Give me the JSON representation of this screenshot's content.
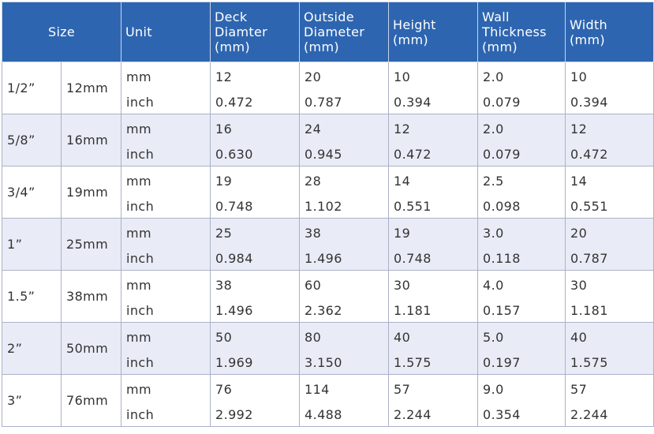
{
  "header": {
    "size": "Size",
    "unit": "Unit",
    "deck": [
      "Deck",
      "Diamter",
      "(mm)"
    ],
    "outside": [
      "Outside",
      "Diameter",
      "(mm)"
    ],
    "height": [
      "Height",
      "(mm)"
    ],
    "wall": [
      "Wall",
      "Thickness",
      "(mm)"
    ],
    "width": [
      "Width",
      "(mm)"
    ]
  },
  "rows": [
    {
      "size": "1/2”",
      "mm": "12mm",
      "units": [
        "mm",
        "inch"
      ],
      "deck": [
        "12",
        "0.472"
      ],
      "outside": [
        "20",
        "0.787"
      ],
      "height": [
        "10",
        "0.394"
      ],
      "wall": [
        "2.0",
        "0.079"
      ],
      "width": [
        "10",
        "0.394"
      ]
    },
    {
      "size": "5/8”",
      "mm": "16mm",
      "units": [
        "mm",
        "inch"
      ],
      "deck": [
        "16",
        "0.630"
      ],
      "outside": [
        "24",
        "0.945"
      ],
      "height": [
        "12",
        "0.472"
      ],
      "wall": [
        "2.0",
        "0.079"
      ],
      "width": [
        "12",
        "0.472"
      ]
    },
    {
      "size": "3/4”",
      "mm": "19mm",
      "units": [
        "mm",
        "inch"
      ],
      "deck": [
        "19",
        "0.748"
      ],
      "outside": [
        "28",
        "1.102"
      ],
      "height": [
        "14",
        "0.551"
      ],
      "wall": [
        "2.5",
        "0.098"
      ],
      "width": [
        "14",
        "0.551"
      ]
    },
    {
      "size": "1”",
      "mm": "25mm",
      "units": [
        "mm",
        "inch"
      ],
      "deck": [
        "25",
        "0.984"
      ],
      "outside": [
        "38",
        "1.496"
      ],
      "height": [
        "19",
        "0.748"
      ],
      "wall": [
        "3.0",
        "0.118"
      ],
      "width": [
        "20",
        "0.787"
      ]
    },
    {
      "size": "1.5”",
      "mm": "38mm",
      "units": [
        "mm",
        "inch"
      ],
      "deck": [
        "38",
        "1.496"
      ],
      "outside": [
        "60",
        "2.362"
      ],
      "height": [
        "30",
        "1.181"
      ],
      "wall": [
        "4.0",
        "0.157"
      ],
      "width": [
        "30",
        "1.181"
      ]
    },
    {
      "size": "2”",
      "mm": "50mm",
      "units": [
        "mm",
        "inch"
      ],
      "deck": [
        "50",
        "1.969"
      ],
      "outside": [
        "80",
        "3.150"
      ],
      "height": [
        "40",
        "1.575"
      ],
      "wall": [
        "5.0",
        "0.197"
      ],
      "width": [
        "40",
        "1.575"
      ]
    },
    {
      "size": "3”",
      "mm": "76mm",
      "units": [
        "mm",
        "inch"
      ],
      "deck": [
        "76",
        "2.992"
      ],
      "outside": [
        "114",
        "4.488"
      ],
      "height": [
        "57",
        "2.244"
      ],
      "wall": [
        "9.0",
        "0.354"
      ],
      "width": [
        "57",
        "2.244"
      ]
    }
  ],
  "colors": {
    "header_bg": "#2e65b0",
    "band_bg": "#e9ecf6",
    "border": "#aab2c8"
  }
}
